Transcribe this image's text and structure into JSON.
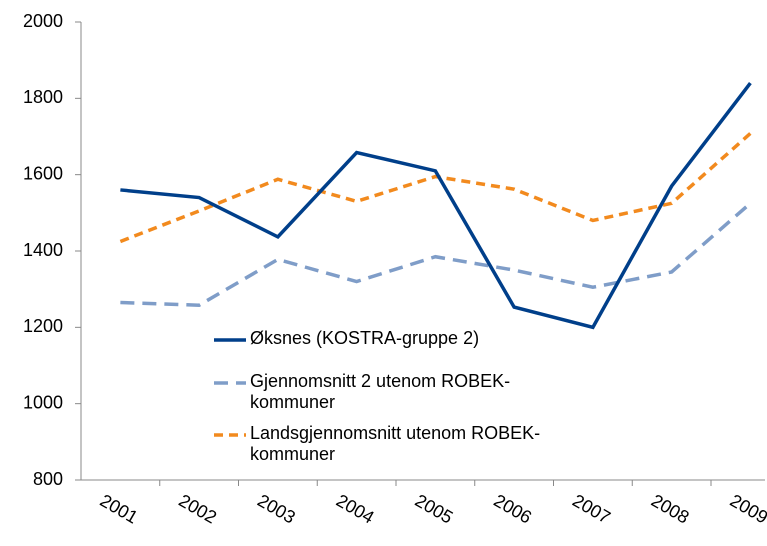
{
  "chart_data": {
    "type": "line",
    "categories": [
      "2001",
      "2002",
      "2003",
      "2004",
      "2005",
      "2006",
      "2007",
      "2008",
      "2009"
    ],
    "series": [
      {
        "name": "Øksnes (KOSTRA-gruppe 2)",
        "color": "#003f8a",
        "dash": "solid",
        "values": [
          1560,
          1540,
          1437,
          1658,
          1610,
          1253,
          1200,
          1570,
          1840
        ]
      },
      {
        "name": "Gjennomsnitt 2 utenom ROBEK-kommuner",
        "color": "#7f9dc8",
        "dash": "dashed",
        "values": [
          1265,
          1258,
          1378,
          1320,
          1385,
          1350,
          1305,
          1345,
          1525
        ]
      },
      {
        "name": "Landsgjennomsnitt utenom ROBEK-kommuner",
        "color": "#f28a1e",
        "dash": "dashed",
        "values": [
          1425,
          1505,
          1588,
          1530,
          1595,
          1562,
          1480,
          1525,
          1708
        ]
      }
    ],
    "ylim": [
      800,
      2000
    ],
    "yticks": [
      800,
      1000,
      1200,
      1400,
      1600,
      1800,
      2000
    ],
    "grid": false
  }
}
